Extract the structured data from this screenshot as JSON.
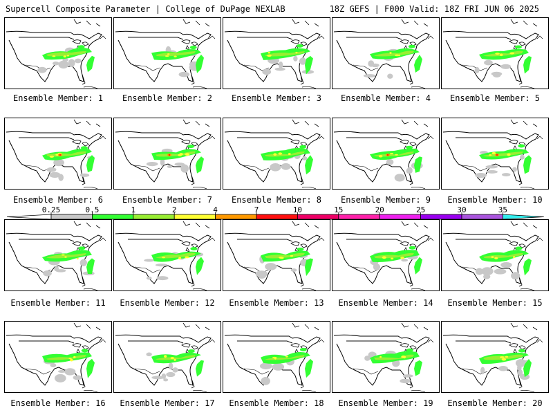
{
  "header": {
    "left": "Supercell Composite Parameter | College of DuPage NEXLAB",
    "right": "18Z GEFS | F000 Valid: 18Z FRI JUN 06 2025"
  },
  "caption_prefix": "Ensemble Member: ",
  "members": [
    1,
    2,
    3,
    4,
    5,
    6,
    7,
    8,
    9,
    10,
    11,
    12,
    13,
    14,
    15,
    16,
    17,
    18,
    19,
    20
  ],
  "colorbar": {
    "labels": [
      "0.25",
      "0.5",
      "1",
      "2",
      "4",
      "7",
      "10",
      "15",
      "20",
      "25",
      "30",
      "35"
    ],
    "bins": [
      {
        "lo": 0.25,
        "hi": 0.5,
        "color": "#c8c8c8"
      },
      {
        "lo": 0.5,
        "hi": 1,
        "color": "#33ff33"
      },
      {
        "lo": 1,
        "hi": 2,
        "color": "#99ee33"
      },
      {
        "lo": 2,
        "hi": 4,
        "color": "#ffff33"
      },
      {
        "lo": 4,
        "hi": 7,
        "color": "#ff9900"
      },
      {
        "lo": 7,
        "hi": 10,
        "color": "#ff1111"
      },
      {
        "lo": 10,
        "hi": 15,
        "color": "#ee0066"
      },
      {
        "lo": 15,
        "hi": 20,
        "color": "#ff22aa"
      },
      {
        "lo": 20,
        "hi": 25,
        "color": "#ee22ee"
      },
      {
        "lo": 25,
        "hi": 30,
        "color": "#9900ee"
      },
      {
        "lo": 30,
        "hi": 35,
        "color": "#aa55dd"
      },
      {
        "lo": 35,
        "hi": null,
        "color": "#33eeee"
      }
    ]
  },
  "colors": {
    "land": "#ffffff",
    "border": "#000000",
    "state_lines": "#000000"
  }
}
